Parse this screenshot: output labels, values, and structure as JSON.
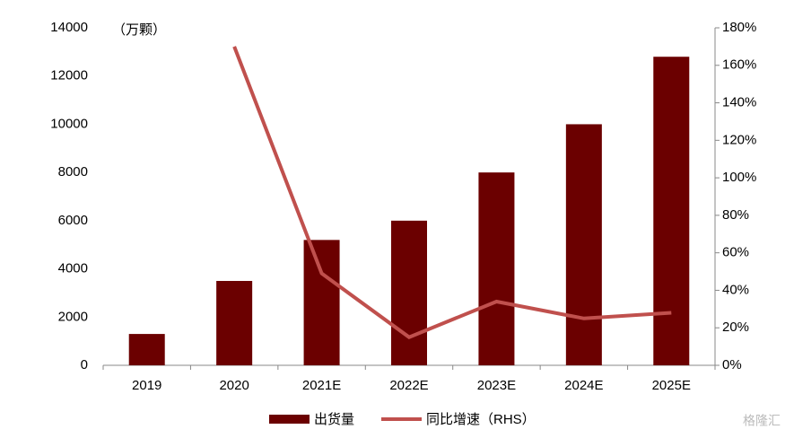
{
  "chart_data": {
    "type": "bar",
    "annotation": "（万颗）",
    "categories": [
      "2019",
      "2020",
      "2021E",
      "2022E",
      "2023E",
      "2024E",
      "2025E"
    ],
    "series": [
      {
        "name": "出货量",
        "type": "bar",
        "color": "#6b0000",
        "values": [
          1300,
          3500,
          5200,
          6000,
          8000,
          10000,
          12800
        ]
      },
      {
        "name": "同比增速（RHS）",
        "type": "line",
        "axis": "y2",
        "color": "#c0504d",
        "values": [
          null,
          170,
          49,
          15,
          34,
          25,
          28
        ]
      }
    ],
    "ylim": [
      0,
      14000
    ],
    "yticks": [
      0,
      2000,
      4000,
      6000,
      8000,
      10000,
      12000,
      14000
    ],
    "y2lim": [
      0,
      180
    ],
    "y2ticks": [
      {
        "value": 0,
        "label": "0%"
      },
      {
        "value": 20,
        "label": "20%"
      },
      {
        "value": 40,
        "label": "40%"
      },
      {
        "value": 60,
        "label": "60%"
      },
      {
        "value": 80,
        "label": "80%"
      },
      {
        "value": 100,
        "label": "100%"
      },
      {
        "value": 120,
        "label": "120%"
      },
      {
        "value": 140,
        "label": "140%"
      },
      {
        "value": 160,
        "label": "160%"
      },
      {
        "value": 180,
        "label": "180%"
      }
    ],
    "legend": "bottom",
    "watermark": "格隆汇"
  }
}
